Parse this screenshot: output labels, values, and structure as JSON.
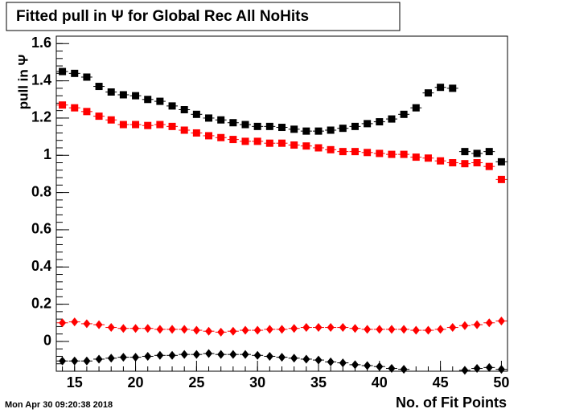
{
  "chart_data": {
    "type": "scatter",
    "title": "Fitted pull in  Ψ  for Global Rec All NoHits",
    "y_label": "pull in Ψ",
    "x_label": "No. of Fit Points",
    "timestamp": "Mon Apr 30 09:20:38 2018",
    "x": [
      14,
      15,
      16,
      17,
      18,
      19,
      20,
      21,
      22,
      23,
      24,
      25,
      26,
      27,
      28,
      29,
      30,
      31,
      32,
      33,
      34,
      35,
      36,
      37,
      38,
      39,
      40,
      41,
      42,
      43,
      44,
      45,
      46,
      47,
      48,
      49,
      50
    ],
    "series": [
      {
        "color": "#000000",
        "marker": "square",
        "values": [
          1.45,
          1.44,
          1.42,
          1.37,
          1.34,
          1.325,
          1.32,
          1.3,
          1.29,
          1.265,
          1.245,
          1.22,
          1.2,
          1.19,
          1.175,
          1.165,
          1.155,
          1.155,
          1.15,
          1.14,
          1.13,
          1.13,
          1.135,
          1.145,
          1.155,
          1.17,
          1.18,
          1.195,
          1.22,
          1.255,
          1.335,
          1.365,
          1.36,
          1.02,
          1.01,
          1.02,
          0.965
        ]
      },
      {
        "color": "#ff0000",
        "marker": "square",
        "values": [
          1.27,
          1.255,
          1.235,
          1.21,
          1.19,
          1.165,
          1.165,
          1.16,
          1.165,
          1.155,
          1.135,
          1.12,
          1.105,
          1.095,
          1.085,
          1.075,
          1.075,
          1.065,
          1.065,
          1.055,
          1.05,
          1.04,
          1.03,
          1.02,
          1.02,
          1.015,
          1.01,
          1.005,
          1.005,
          0.99,
          0.985,
          0.97,
          0.96,
          0.955,
          0.96,
          0.94,
          0.87
        ]
      },
      {
        "color": "#ff0000",
        "marker": "diamond",
        "values": [
          0.1,
          0.105,
          0.095,
          0.09,
          0.075,
          0.07,
          0.07,
          0.07,
          0.065,
          0.065,
          0.065,
          0.06,
          0.055,
          0.05,
          0.055,
          0.06,
          0.06,
          0.065,
          0.065,
          0.07,
          0.075,
          0.075,
          0.075,
          0.075,
          0.07,
          0.065,
          0.065,
          0.065,
          0.065,
          0.06,
          0.06,
          0.065,
          0.075,
          0.085,
          0.09,
          0.1,
          0.11
        ]
      },
      {
        "color": "#000000",
        "marker": "diamond",
        "values": [
          -0.105,
          -0.105,
          -0.105,
          -0.095,
          -0.09,
          -0.085,
          -0.085,
          -0.08,
          -0.075,
          -0.075,
          -0.07,
          -0.07,
          -0.065,
          -0.07,
          -0.07,
          -0.07,
          -0.075,
          -0.08,
          -0.085,
          -0.09,
          -0.095,
          -0.1,
          -0.11,
          -0.115,
          -0.125,
          -0.13,
          -0.135,
          -0.145,
          -0.15,
          null,
          null,
          null,
          null,
          -0.155,
          -0.145,
          -0.14,
          -0.15
        ]
      }
    ],
    "xlim": [
      13.5,
      50.5
    ],
    "xticks": [
      15,
      20,
      25,
      30,
      35,
      40,
      45,
      50
    ],
    "ylim": [
      -0.16,
      1.64
    ],
    "yticks": [
      0,
      0.2,
      0.4,
      0.6,
      0.8,
      1,
      1.2,
      1.4,
      1.6
    ]
  }
}
